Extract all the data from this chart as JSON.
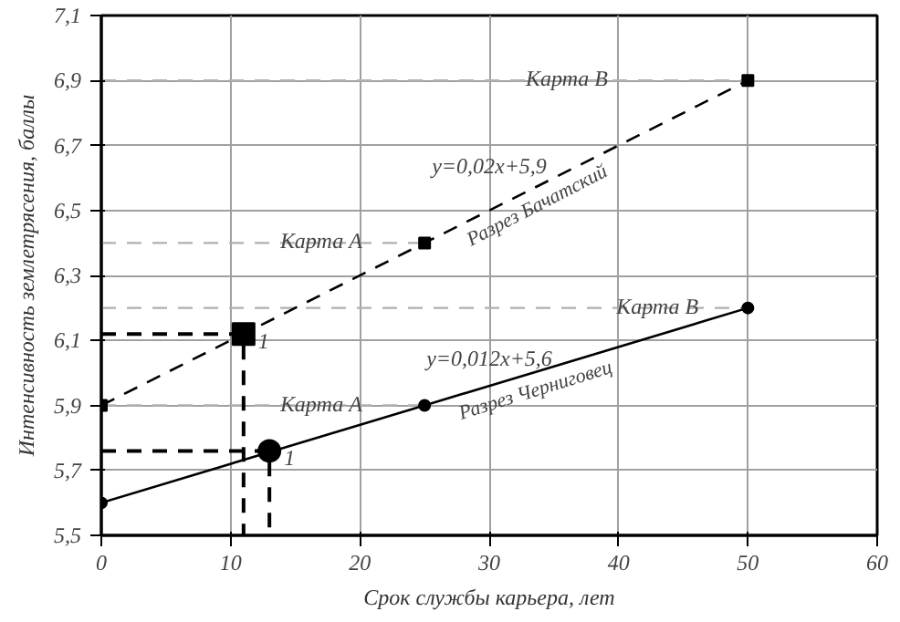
{
  "chart_data": {
    "type": "line",
    "xlabel": "Срок службы карьера, лет",
    "ylabel": "Интенсивность землетрясения, баллы",
    "xlim": [
      0,
      60
    ],
    "xticks": [
      0,
      10,
      20,
      30,
      40,
      50,
      60
    ],
    "ylim": [
      5.5,
      7.1
    ],
    "yticks": [
      {
        "value": 5.5,
        "label": "5,5"
      },
      {
        "value": 5.7,
        "label": "5,7"
      },
      {
        "value": 5.9,
        "label": "5,9"
      },
      {
        "value": 6.1,
        "label": "6,1"
      },
      {
        "value": 6.3,
        "label": "6,3"
      },
      {
        "value": 6.5,
        "label": "6,5"
      },
      {
        "value": 6.7,
        "label": "6,7"
      },
      {
        "value": 6.9,
        "label": "6,9"
      },
      {
        "value": 7.1,
        "label": "7,1"
      }
    ],
    "grid": true,
    "series": [
      {
        "type": "line",
        "color": "#b0b0b0",
        "x": [
          0,
          50
        ],
        "values": [
          6.9,
          6.9
        ],
        "marker": "none",
        "line_style": "dashed"
      },
      {
        "type": "line",
        "color": "#b0b0b0",
        "x": [
          0,
          25
        ],
        "values": [
          6.4,
          6.4
        ],
        "marker": "none",
        "line_style": "dashed"
      },
      {
        "type": "line",
        "color": "#b0b0b0",
        "x": [
          0,
          50
        ],
        "values": [
          6.2,
          6.2
        ],
        "marker": "none",
        "line_style": "dashed"
      },
      {
        "type": "line",
        "color": "#b0b0b0",
        "x": [
          0,
          25
        ],
        "values": [
          5.9,
          5.9
        ],
        "marker": "none",
        "line_style": "dashed"
      },
      {
        "name": "Разрез Бачатский",
        "color": "#000000",
        "x": [
          0,
          25,
          50
        ],
        "values": [
          5.9,
          6.4,
          6.9
        ],
        "marker": "square",
        "line_style": "dashed"
      },
      {
        "name": "Разрез Черниговец",
        "color": "#000000",
        "x": [
          0,
          25,
          50
        ],
        "values": [
          5.6,
          5.9,
          6.2
        ],
        "marker": "circle",
        "line_style": "solid"
      },
      {
        "type": "line",
        "color": "#000000",
        "x": [
          0,
          11,
          11
        ],
        "values": [
          6.12,
          6.12,
          5.5
        ],
        "marker": "none",
        "line_style": "dashed"
      },
      {
        "type": "line",
        "color": "#000000",
        "x": [
          0,
          13,
          13
        ],
        "values": [
          5.76,
          5.76,
          5.5
        ],
        "marker": "none",
        "line_style": "dashed"
      },
      {
        "type": "scatter",
        "color": "#000000",
        "x": [
          11
        ],
        "values": [
          6.12
        ],
        "marker": "square"
      },
      {
        "type": "scatter",
        "color": "#000000",
        "x": [
          13
        ],
        "values": [
          5.76
        ],
        "marker": "circle"
      }
    ],
    "annotations": [
      {
        "text": "Карта В",
        "x": 36,
        "y": 6.9
      },
      {
        "text": "Карта А",
        "x": 17,
        "y": 6.4
      },
      {
        "text": "Карта В",
        "x": 43,
        "y": 6.2
      },
      {
        "text": "Карта А",
        "x": 17,
        "y": 5.9
      },
      "y=0,02x+5,9",
      "y=0,012x+5,6",
      {
        "text": "1",
        "x": 11,
        "y": 6.12
      },
      {
        "text": "1",
        "x": 13,
        "y": 5.76
      }
    ]
  }
}
